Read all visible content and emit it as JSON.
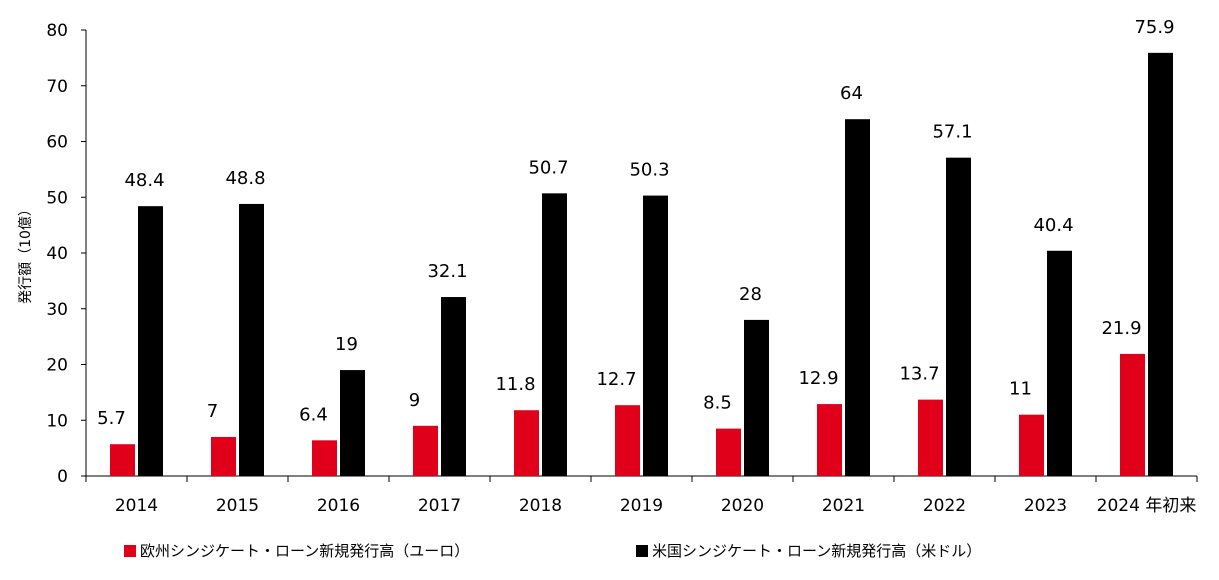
{
  "chart_data": {
    "type": "bar",
    "categories": [
      "2014",
      "2015",
      "2016",
      "2017",
      "2018",
      "2019",
      "2020",
      "2021",
      "2022",
      "2023",
      "2024 年初来"
    ],
    "series": [
      {
        "name": "欧州シンジケート・ローン新規発行高（ユーロ）",
        "color": "#e0001a",
        "values": [
          5.7,
          7,
          6.4,
          9,
          11.8,
          12.7,
          8.5,
          12.9,
          13.7,
          11,
          21.9
        ],
        "labels": [
          "5.7",
          "7",
          "6.4",
          "9",
          "11.8",
          "12.7",
          "8.5",
          "12.9",
          "13.7",
          "11",
          "21.9"
        ]
      },
      {
        "name": "米国シンジケート・ローン新規発行高（米ドル）",
        "color": "#000000",
        "values": [
          48.4,
          48.8,
          19,
          32.1,
          50.7,
          50.3,
          28,
          64,
          57.1,
          40.4,
          75.9
        ],
        "labels": [
          "48.4",
          "48.8",
          "19",
          "32.1",
          "50.7",
          "50.3",
          "28",
          "64",
          "57.1",
          "40.4",
          "75.9"
        ]
      }
    ],
    "title": "",
    "xlabel": "",
    "ylabel": "発行額（10億）",
    "ylim": [
      0,
      80
    ],
    "yticks": [
      "0",
      "10",
      "20",
      "30",
      "40",
      "50",
      "60",
      "70",
      "80"
    ],
    "grid": false,
    "legend_position": "bottom"
  }
}
